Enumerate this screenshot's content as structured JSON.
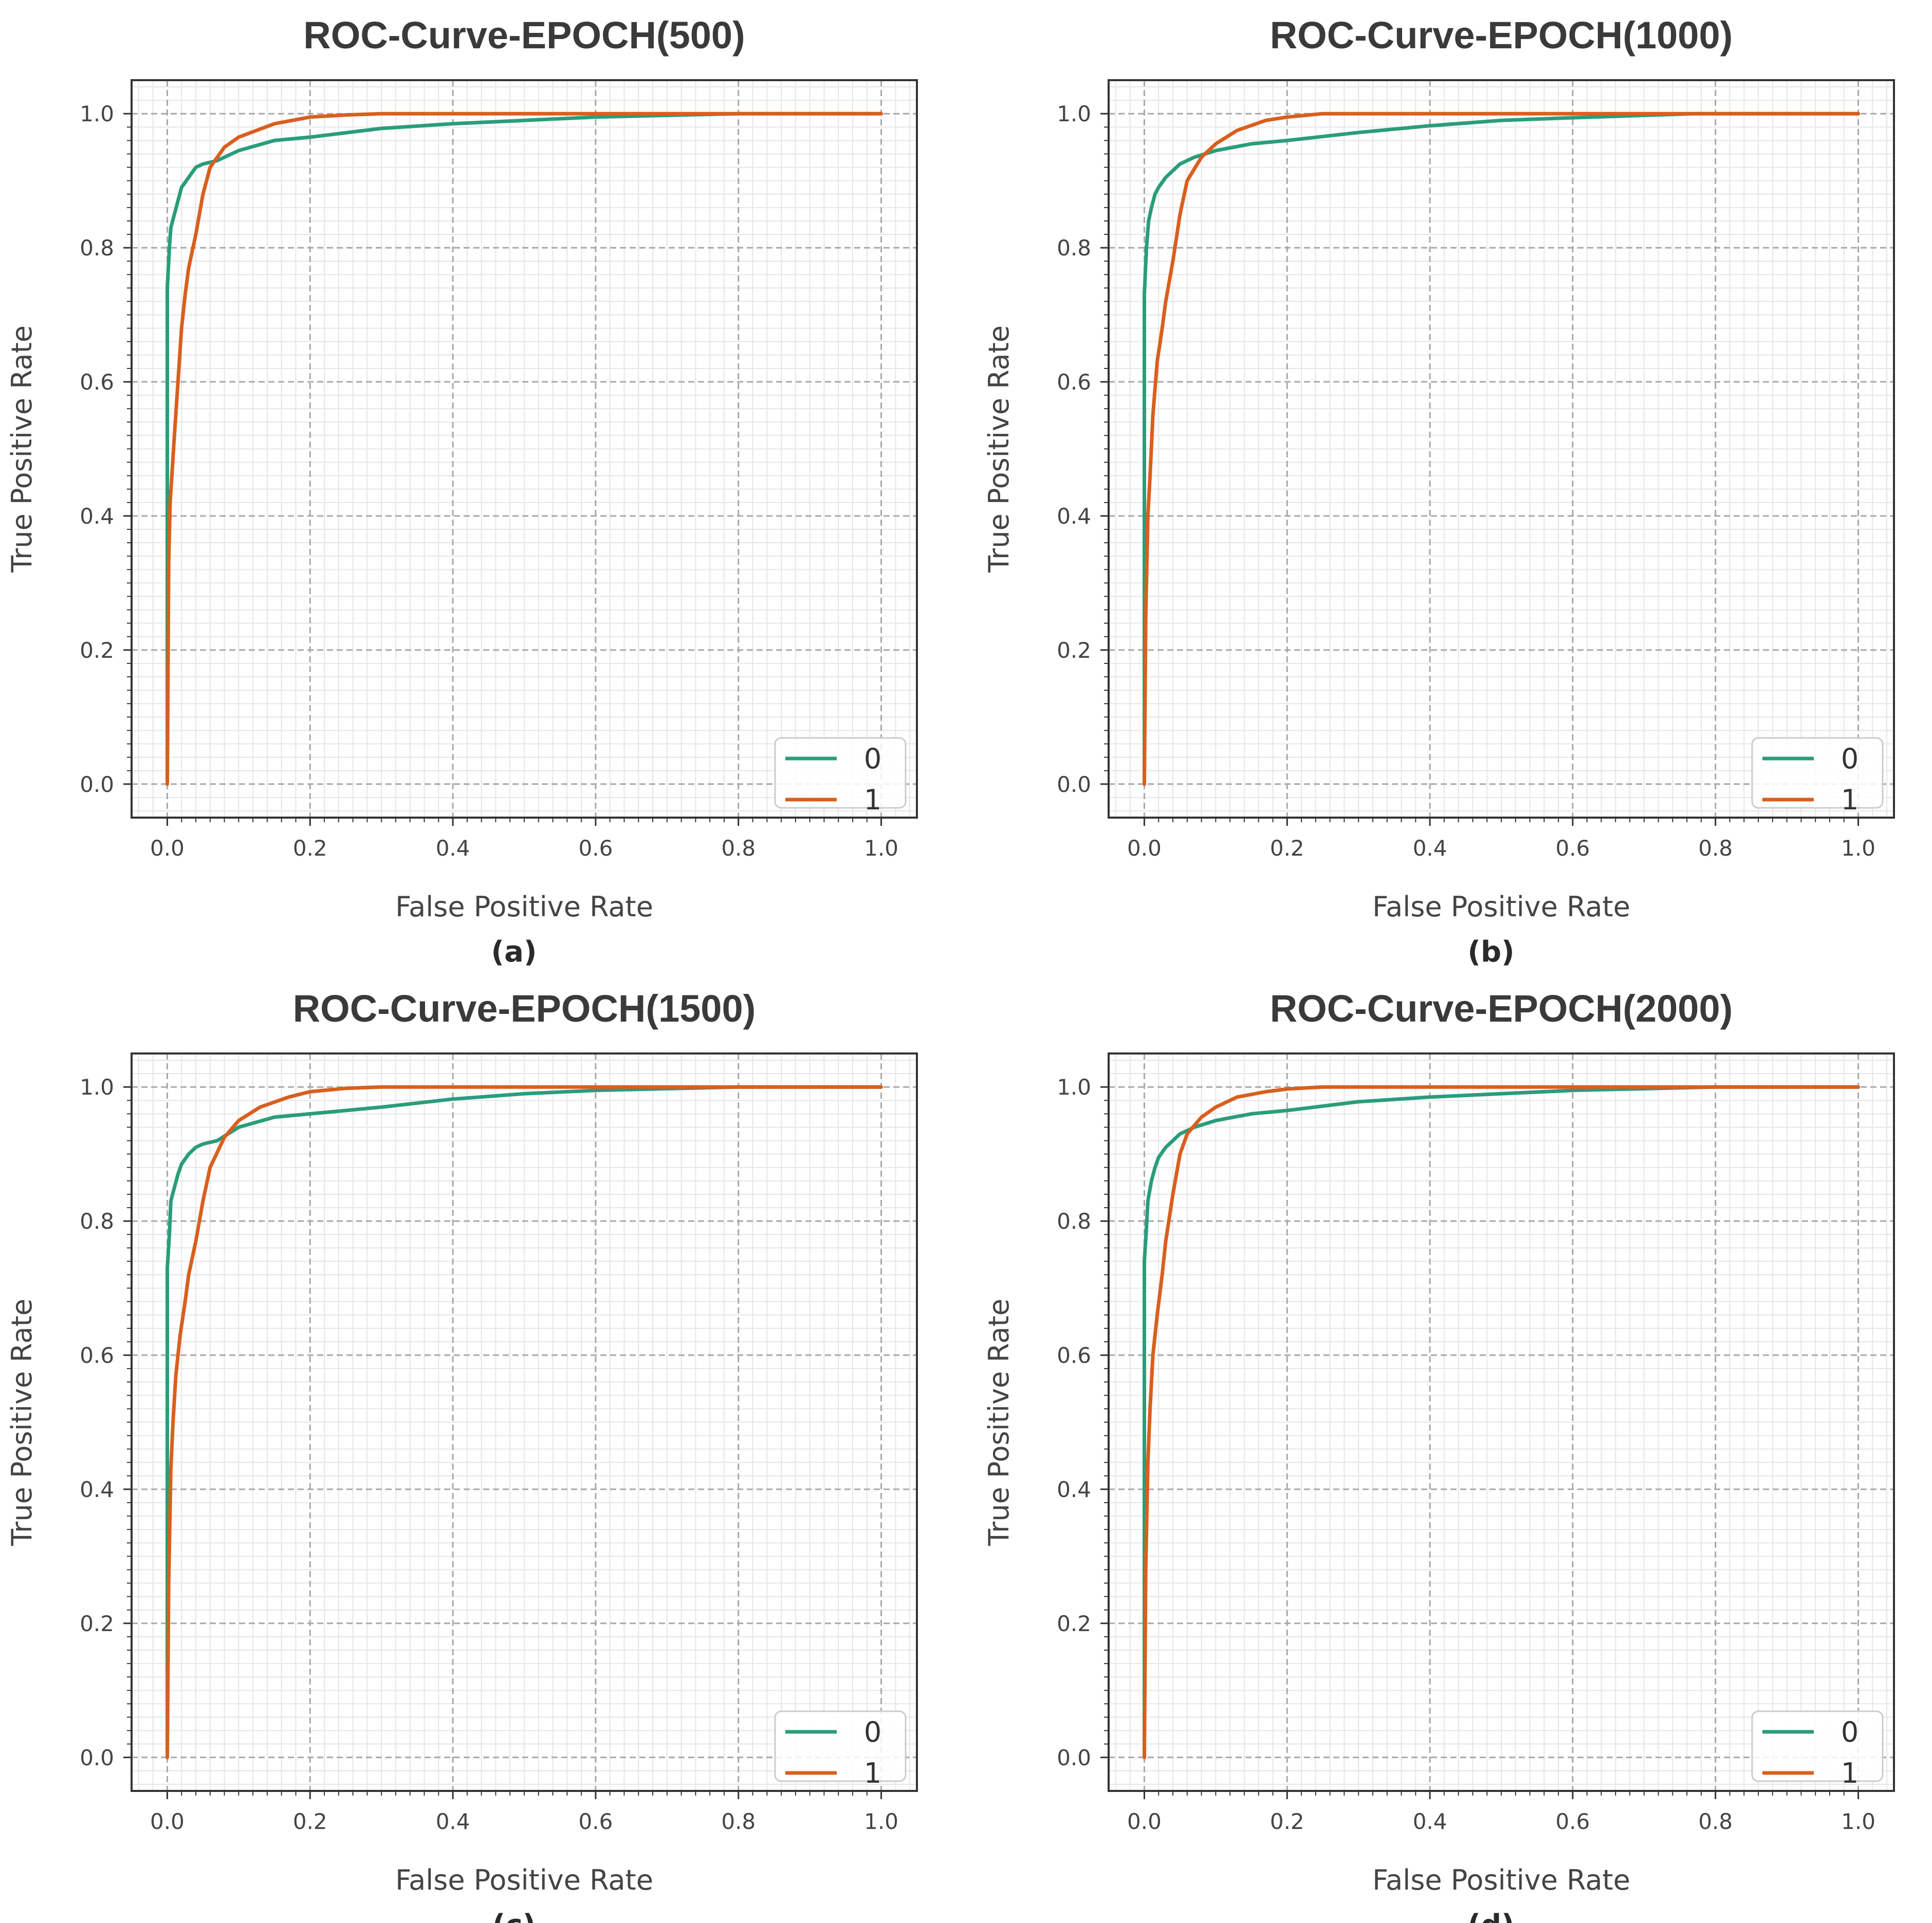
{
  "colors": {
    "class0": "#2a9d7a",
    "class1": "#d95f1e"
  },
  "chart_data": [
    {
      "type": "line",
      "panel_label": "(a)",
      "title": "ROC-Curve-EPOCH(500)",
      "xlabel": "False Positive Rate",
      "ylabel": "True Positive Rate",
      "xlim": [
        -0.05,
        1.05
      ],
      "ylim": [
        -0.05,
        1.05
      ],
      "xticks": [
        "0.0",
        "0.2",
        "0.4",
        "0.6",
        "0.8",
        "1.0"
      ],
      "yticks": [
        "0.0",
        "0.2",
        "0.4",
        "0.6",
        "0.8",
        "1.0"
      ],
      "grid": true,
      "legend_position": "bottom-right",
      "series": [
        {
          "name": "0",
          "x": [
            0,
            0,
            0.003,
            0.005,
            0.01,
            0.015,
            0.02,
            0.03,
            0.04,
            0.05,
            0.07,
            0.1,
            0.15,
            0.2,
            0.3,
            0.4,
            0.5,
            0.6,
            0.8,
            1.0
          ],
          "y": [
            0,
            0.74,
            0.8,
            0.83,
            0.85,
            0.87,
            0.89,
            0.905,
            0.92,
            0.925,
            0.93,
            0.945,
            0.96,
            0.965,
            0.978,
            0.985,
            0.99,
            0.995,
            1.0,
            1.0
          ]
        },
        {
          "name": "1",
          "x": [
            0,
            0.002,
            0.004,
            0.007,
            0.01,
            0.015,
            0.02,
            0.025,
            0.03,
            0.04,
            0.05,
            0.06,
            0.08,
            0.1,
            0.15,
            0.2,
            0.25,
            0.3,
            0.5,
            1.0
          ],
          "y": [
            0,
            0.33,
            0.42,
            0.47,
            0.52,
            0.6,
            0.68,
            0.73,
            0.77,
            0.82,
            0.88,
            0.92,
            0.95,
            0.965,
            0.985,
            0.995,
            0.998,
            1.0,
            1.0,
            1.0
          ]
        }
      ]
    },
    {
      "type": "line",
      "panel_label": "(b)",
      "title": "ROC-Curve-EPOCH(1000)",
      "xlabel": "False Positive Rate",
      "ylabel": "True Positive Rate",
      "xlim": [
        -0.05,
        1.05
      ],
      "ylim": [
        -0.05,
        1.05
      ],
      "xticks": [
        "0.0",
        "0.2",
        "0.4",
        "0.6",
        "0.8",
        "1.0"
      ],
      "yticks": [
        "0.0",
        "0.2",
        "0.4",
        "0.6",
        "0.8",
        "1.0"
      ],
      "grid": true,
      "legend_position": "bottom-right",
      "series": [
        {
          "name": "0",
          "x": [
            0,
            0,
            0.003,
            0.006,
            0.01,
            0.015,
            0.02,
            0.03,
            0.04,
            0.05,
            0.07,
            0.1,
            0.15,
            0.2,
            0.3,
            0.4,
            0.5,
            0.6,
            0.77,
            1.0
          ],
          "y": [
            0,
            0.73,
            0.8,
            0.84,
            0.86,
            0.88,
            0.89,
            0.905,
            0.915,
            0.925,
            0.935,
            0.945,
            0.955,
            0.96,
            0.972,
            0.982,
            0.99,
            0.994,
            1.0,
            1.0
          ]
        },
        {
          "name": "1",
          "x": [
            0,
            0.002,
            0.005,
            0.008,
            0.012,
            0.018,
            0.025,
            0.03,
            0.04,
            0.05,
            0.06,
            0.08,
            0.1,
            0.13,
            0.17,
            0.2,
            0.25,
            0.3,
            0.5,
            1.0
          ],
          "y": [
            0,
            0.25,
            0.4,
            0.46,
            0.55,
            0.63,
            0.68,
            0.72,
            0.78,
            0.85,
            0.9,
            0.935,
            0.955,
            0.975,
            0.99,
            0.995,
            1.0,
            1.0,
            1.0,
            1.0
          ]
        }
      ]
    },
    {
      "type": "line",
      "panel_label": "(c)",
      "title": "ROC-Curve-EPOCH(1500)",
      "xlabel": "False Positive Rate",
      "ylabel": "True Positive Rate",
      "xlim": [
        -0.05,
        1.05
      ],
      "ylim": [
        -0.05,
        1.05
      ],
      "xticks": [
        "0.0",
        "0.2",
        "0.4",
        "0.6",
        "0.8",
        "1.0"
      ],
      "yticks": [
        "0.0",
        "0.2",
        "0.4",
        "0.6",
        "0.8",
        "1.0"
      ],
      "grid": true,
      "legend_position": "bottom-right",
      "series": [
        {
          "name": "0",
          "x": [
            0,
            0,
            0.003,
            0.005,
            0.01,
            0.015,
            0.02,
            0.03,
            0.04,
            0.05,
            0.07,
            0.1,
            0.15,
            0.2,
            0.3,
            0.4,
            0.5,
            0.6,
            0.8,
            1.0
          ],
          "y": [
            0,
            0.73,
            0.78,
            0.83,
            0.85,
            0.87,
            0.885,
            0.9,
            0.91,
            0.915,
            0.92,
            0.94,
            0.955,
            0.96,
            0.97,
            0.982,
            0.99,
            0.995,
            1.0,
            1.0
          ]
        },
        {
          "name": "1",
          "x": [
            0,
            0.002,
            0.005,
            0.008,
            0.012,
            0.018,
            0.025,
            0.03,
            0.04,
            0.05,
            0.06,
            0.08,
            0.1,
            0.13,
            0.17,
            0.2,
            0.25,
            0.3,
            0.5,
            1.0
          ],
          "y": [
            0,
            0.26,
            0.43,
            0.5,
            0.57,
            0.63,
            0.68,
            0.72,
            0.77,
            0.83,
            0.88,
            0.925,
            0.95,
            0.97,
            0.985,
            0.993,
            0.998,
            1.0,
            1.0,
            1.0
          ]
        }
      ]
    },
    {
      "type": "line",
      "panel_label": "(d)",
      "title": "ROC-Curve-EPOCH(2000)",
      "xlabel": "False Positive Rate",
      "ylabel": "True Positive Rate",
      "xlim": [
        -0.05,
        1.05
      ],
      "ylim": [
        -0.05,
        1.05
      ],
      "xticks": [
        "0.0",
        "0.2",
        "0.4",
        "0.6",
        "0.8",
        "1.0"
      ],
      "yticks": [
        "0.0",
        "0.2",
        "0.4",
        "0.6",
        "0.8",
        "1.0"
      ],
      "grid": true,
      "legend_position": "bottom-right",
      "series": [
        {
          "name": "0",
          "x": [
            0,
            0,
            0.003,
            0.005,
            0.01,
            0.015,
            0.02,
            0.03,
            0.04,
            0.05,
            0.07,
            0.1,
            0.15,
            0.2,
            0.3,
            0.4,
            0.5,
            0.6,
            0.8,
            1.0
          ],
          "y": [
            0,
            0.74,
            0.79,
            0.83,
            0.86,
            0.88,
            0.895,
            0.91,
            0.92,
            0.93,
            0.94,
            0.95,
            0.96,
            0.965,
            0.978,
            0.985,
            0.99,
            0.995,
            1.0,
            1.0
          ]
        },
        {
          "name": "1",
          "x": [
            0,
            0.002,
            0.005,
            0.008,
            0.012,
            0.018,
            0.025,
            0.03,
            0.04,
            0.05,
            0.06,
            0.08,
            0.1,
            0.13,
            0.17,
            0.2,
            0.25,
            0.3,
            0.5,
            1.0
          ],
          "y": [
            0,
            0.28,
            0.44,
            0.52,
            0.6,
            0.66,
            0.72,
            0.77,
            0.84,
            0.9,
            0.93,
            0.955,
            0.97,
            0.985,
            0.993,
            0.997,
            1.0,
            1.0,
            1.0,
            1.0
          ]
        }
      ]
    }
  ]
}
